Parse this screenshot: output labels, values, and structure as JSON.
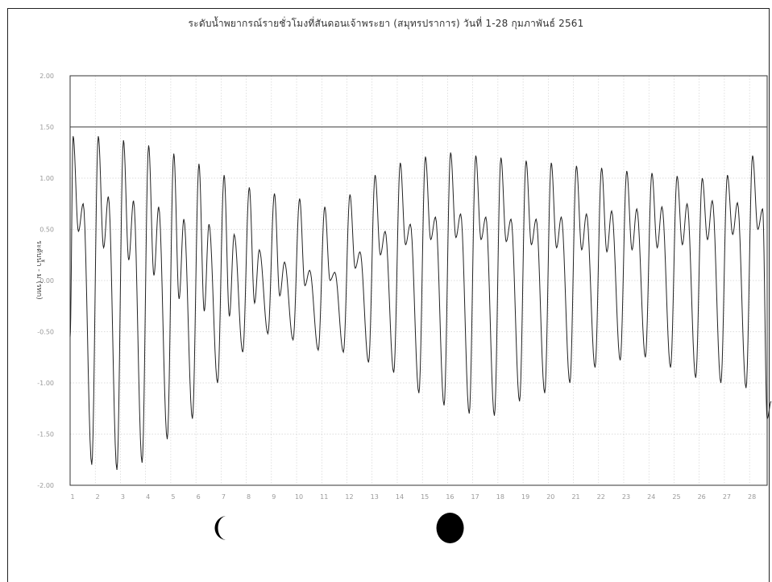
{
  "chart_data": {
    "type": "line",
    "title": "ระดับน้ำพยากรณ์รายชั่วโมงที่สันดอนเจ้าพระยา (สมุทรปราการ) วันที่ 1-28 กุมภาพันธ์ 2561",
    "ylabel": "ระดับน้ำ - ม (รทก)",
    "xlabel": "",
    "ylim": [
      -2.0,
      2.0
    ],
    "xlim": [
      1,
      28.7
    ],
    "yticks": [
      -2.0,
      -1.5,
      -1.0,
      -0.5,
      0.0,
      0.5,
      1.0,
      1.5,
      2.0
    ],
    "ytick_labels": [
      "-2.00",
      "-1.50",
      "-1.00",
      "-0.50",
      "0.00",
      "0.50",
      "1.00",
      "1.50",
      "2.00"
    ],
    "xticks": [
      1,
      2,
      3,
      4,
      5,
      6,
      7,
      8,
      9,
      10,
      11,
      12,
      13,
      14,
      15,
      16,
      17,
      18,
      19,
      20,
      21,
      22,
      23,
      24,
      25,
      26,
      27,
      28
    ],
    "xtick_labels": [
      "1",
      "2",
      "3",
      "4",
      "5",
      "6",
      "7",
      "8",
      "9",
      "10",
      "11",
      "12",
      "13",
      "14",
      "15",
      "16",
      "17",
      "18",
      "19",
      "20",
      "21",
      "22",
      "23",
      "24",
      "25",
      "26",
      "27",
      "28"
    ],
    "reference_line": 1.5,
    "grid": true,
    "series": [
      {
        "name": "",
        "high1": [
          1.41,
          1.41,
          1.37,
          1.32,
          1.24,
          1.14,
          1.03,
          0.91,
          0.85,
          0.8,
          0.72,
          0.84,
          1.03,
          1.15,
          1.21,
          1.25,
          1.22,
          1.2,
          1.17,
          1.15,
          1.12,
          1.1,
          1.07,
          1.05,
          1.02,
          1.0,
          1.03,
          1.22
        ],
        "low1": [
          -1.8,
          -1.85,
          -1.78,
          -1.55,
          -1.35,
          -1.0,
          -0.7,
          -0.52,
          -0.58,
          -0.68,
          -0.7,
          -0.8,
          -0.9,
          -1.1,
          -1.22,
          -1.3,
          -1.32,
          -1.18,
          -1.1,
          -1.0,
          -0.85,
          -0.78,
          -0.75,
          -0.85,
          -0.95,
          -1.0,
          -1.05,
          -1.18
        ],
        "high2": [
          0.75,
          0.82,
          0.78,
          0.72,
          0.6,
          0.55,
          0.45,
          0.3,
          0.18,
          0.1,
          0.08,
          0.28,
          0.48,
          0.55,
          0.62,
          0.65,
          0.62,
          0.6,
          0.6,
          0.62,
          0.65,
          0.68,
          0.7,
          0.72,
          0.75,
          0.78,
          0.76,
          0.7
        ],
        "low2": [
          0.48,
          0.32,
          0.2,
          0.05,
          -0.18,
          -0.3,
          -0.35,
          -0.22,
          -0.15,
          -0.05,
          0.0,
          0.12,
          0.25,
          0.35,
          0.4,
          0.42,
          0.4,
          0.38,
          0.35,
          0.32,
          0.3,
          0.28,
          0.3,
          0.32,
          0.35,
          0.4,
          0.45,
          0.5
        ],
        "end_value": -1.35
      }
    ],
    "moon_phases": [
      {
        "day": 7.1,
        "phase": "last-quarter"
      },
      {
        "day": 16.1,
        "phase": "new-moon"
      }
    ]
  }
}
